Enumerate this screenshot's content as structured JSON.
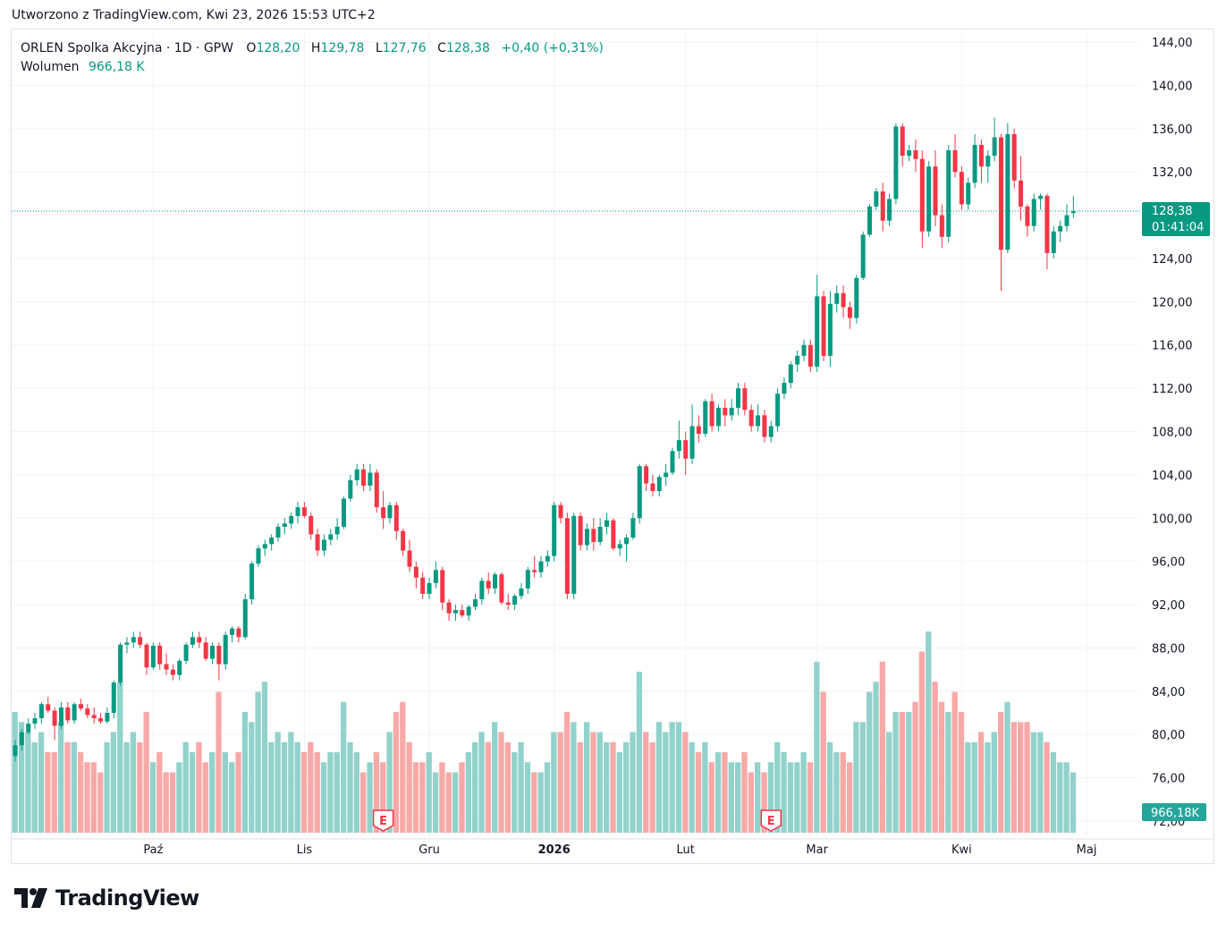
{
  "header": {
    "created_text": "Utworzono z TradingView.com, Kwi 23, 2026 15:53 UTC+2"
  },
  "legend": {
    "symbol": "ORLEN Spolka Akcyjna · 1D · GPW",
    "open_label": "O",
    "open_value": "128,20",
    "high_label": "H",
    "high_value": "129,78",
    "low_label": "L",
    "low_value": "127,76",
    "close_label": "C",
    "close_value": "128,38",
    "change": "+0,40 (+0,31%)",
    "volume_label": "Wolumen",
    "volume_value": "966,18 K"
  },
  "price_tag": {
    "price": "128,38",
    "countdown": "01:41:04"
  },
  "volume_tag": "966,18K",
  "earnings_marker": "E",
  "brand": {
    "name": "TradingView"
  },
  "colors": {
    "up": "#089981",
    "down": "#f23645",
    "vol_up": "#92d2cc",
    "vol_down": "#f7a9a7",
    "grid": "#f0f3fa",
    "accent": "#089981"
  },
  "chart_data": {
    "type": "candlestick",
    "title": "ORLEN Spolka Akcyjna · 1D · GPW",
    "y_ticks": [
      "72,00",
      "76,00",
      "80,00",
      "84,00",
      "88,00",
      "92,00",
      "96,00",
      "100,00",
      "104,00",
      "108,00",
      "112,00",
      "116,00",
      "120,00",
      "124,00",
      "128,00",
      "132,00",
      "136,00",
      "140,00",
      "144,00"
    ],
    "ylim": [
      71,
      145
    ],
    "x_ticks": [
      {
        "label": "Paź",
        "index": 21,
        "bold": false
      },
      {
        "label": "Lis",
        "index": 44,
        "bold": false
      },
      {
        "label": "Gru",
        "index": 63,
        "bold": false
      },
      {
        "label": "2026",
        "index": 82,
        "bold": true
      },
      {
        "label": "Lut",
        "index": 102,
        "bold": false
      },
      {
        "label": "Mar",
        "index": 122,
        "bold": false
      },
      {
        "label": "Kwi",
        "index": 144,
        "bold": false
      },
      {
        "label": "Maj",
        "index": 163,
        "bold": false
      }
    ],
    "earnings_indices": [
      56,
      115
    ],
    "last_price": 128.38,
    "candles": [
      [
        78.0,
        79.5,
        77.5,
        79.0,
        0.6
      ],
      [
        79.0,
        80.5,
        78.5,
        80.2,
        0.55
      ],
      [
        80.2,
        81.5,
        80.0,
        81.0,
        0.5
      ],
      [
        81.0,
        82.0,
        80.5,
        81.5,
        0.45
      ],
      [
        81.5,
        83.0,
        81.0,
        82.8,
        0.5
      ],
      [
        82.8,
        83.5,
        82.0,
        82.2,
        0.4
      ],
      [
        82.2,
        82.5,
        79.5,
        80.8,
        0.4
      ],
      [
        80.8,
        83.0,
        80.5,
        82.5,
        0.55
      ],
      [
        82.5,
        83.0,
        81.0,
        81.3,
        0.45
      ],
      [
        81.3,
        83.0,
        81.0,
        82.8,
        0.45
      ],
      [
        82.8,
        83.3,
        82.2,
        82.4,
        0.4
      ],
      [
        82.4,
        82.8,
        81.5,
        81.8,
        0.35
      ],
      [
        81.8,
        82.5,
        81.0,
        81.5,
        0.35
      ],
      [
        81.5,
        82.0,
        81.0,
        81.2,
        0.3
      ],
      [
        81.2,
        82.5,
        81.0,
        82.0,
        0.45
      ],
      [
        82.0,
        85.0,
        81.5,
        84.8,
        0.5
      ],
      [
        84.8,
        88.5,
        84.5,
        88.3,
        0.75
      ],
      [
        88.3,
        89.0,
        87.5,
        88.5,
        0.45
      ],
      [
        88.5,
        89.5,
        88.0,
        89.0,
        0.5
      ],
      [
        89.0,
        89.5,
        88.0,
        88.3,
        0.45
      ],
      [
        88.3,
        88.5,
        85.5,
        86.2,
        0.6
      ],
      [
        86.2,
        88.5,
        86.0,
        88.2,
        0.35
      ],
      [
        88.2,
        88.5,
        86.0,
        86.5,
        0.4
      ],
      [
        86.5,
        87.5,
        85.5,
        86.0,
        0.3
      ],
      [
        86.0,
        86.5,
        85.0,
        85.5,
        0.3
      ],
      [
        85.5,
        87.0,
        85.0,
        86.8,
        0.35
      ],
      [
        86.8,
        88.5,
        86.5,
        88.3,
        0.45
      ],
      [
        88.3,
        89.5,
        88.0,
        89.0,
        0.4
      ],
      [
        89.0,
        89.5,
        88.0,
        88.5,
        0.45
      ],
      [
        88.5,
        89.0,
        86.8,
        87.0,
        0.35
      ],
      [
        87.0,
        88.5,
        86.5,
        88.2,
        0.4
      ],
      [
        88.2,
        88.5,
        85.0,
        86.5,
        0.7
      ],
      [
        86.5,
        89.5,
        86.0,
        89.2,
        0.4
      ],
      [
        89.2,
        90.0,
        88.5,
        89.8,
        0.35
      ],
      [
        89.8,
        90.0,
        88.5,
        89.0,
        0.4
      ],
      [
        89.0,
        93.0,
        88.8,
        92.5,
        0.6
      ],
      [
        92.5,
        96.0,
        92.0,
        95.8,
        0.55
      ],
      [
        95.8,
        97.5,
        95.5,
        97.2,
        0.7
      ],
      [
        97.2,
        98.0,
        96.5,
        97.6,
        0.75
      ],
      [
        97.6,
        98.5,
        97.0,
        98.2,
        0.45
      ],
      [
        98.2,
        99.5,
        97.8,
        99.2,
        0.5
      ],
      [
        99.2,
        100.0,
        98.5,
        99.5,
        0.45
      ],
      [
        99.5,
        100.5,
        99.0,
        100.2,
        0.5
      ],
      [
        100.2,
        101.5,
        99.5,
        101.0,
        0.45
      ],
      [
        101.0,
        101.5,
        100.0,
        100.2,
        0.4
      ],
      [
        100.2,
        100.5,
        98.0,
        98.5,
        0.45
      ],
      [
        98.5,
        99.0,
        96.5,
        97.0,
        0.4
      ],
      [
        97.0,
        98.5,
        96.5,
        98.0,
        0.35
      ],
      [
        98.0,
        99.0,
        97.5,
        98.5,
        0.4
      ],
      [
        98.5,
        100.0,
        98.0,
        99.2,
        0.4
      ],
      [
        99.2,
        102.0,
        99.0,
        101.8,
        0.65
      ],
      [
        101.8,
        104.0,
        101.5,
        103.5,
        0.45
      ],
      [
        103.5,
        105.0,
        103.0,
        104.5,
        0.4
      ],
      [
        104.5,
        105.0,
        102.5,
        103.0,
        0.3
      ],
      [
        103.0,
        105.0,
        102.5,
        104.2,
        0.35
      ],
      [
        104.2,
        104.5,
        100.5,
        101.0,
        0.4
      ],
      [
        101.0,
        102.5,
        99.0,
        100.0,
        0.35
      ],
      [
        100.0,
        101.5,
        99.5,
        101.2,
        0.5
      ],
      [
        101.2,
        101.5,
        98.0,
        98.8,
        0.6
      ],
      [
        98.8,
        99.0,
        96.5,
        97.0,
        0.65
      ],
      [
        97.0,
        98.0,
        95.0,
        95.5,
        0.45
      ],
      [
        95.5,
        96.0,
        93.5,
        94.5,
        0.35
      ],
      [
        94.5,
        95.0,
        92.5,
        93.0,
        0.35
      ],
      [
        93.0,
        94.5,
        92.5,
        94.0,
        0.4
      ],
      [
        94.0,
        96.0,
        93.5,
        95.2,
        0.3
      ],
      [
        95.2,
        95.5,
        91.5,
        92.2,
        0.35
      ],
      [
        92.2,
        92.5,
        90.5,
        91.2,
        0.3
      ],
      [
        91.2,
        92.0,
        90.5,
        91.5,
        0.3
      ],
      [
        91.5,
        92.0,
        90.8,
        91.0,
        0.35
      ],
      [
        91.0,
        92.0,
        90.5,
        91.8,
        0.4
      ],
      [
        91.8,
        93.0,
        91.5,
        92.5,
        0.45
      ],
      [
        92.5,
        94.5,
        92.0,
        94.2,
        0.5
      ],
      [
        94.2,
        95.0,
        93.0,
        93.5,
        0.45
      ],
      [
        93.5,
        95.0,
        93.0,
        94.8,
        0.55
      ],
      [
        94.8,
        95.0,
        92.0,
        92.2,
        0.5
      ],
      [
        92.2,
        93.0,
        91.5,
        92.0,
        0.45
      ],
      [
        92.0,
        93.0,
        91.5,
        92.8,
        0.4
      ],
      [
        92.8,
        94.0,
        92.5,
        93.5,
        0.45
      ],
      [
        93.5,
        95.5,
        93.0,
        95.2,
        0.35
      ],
      [
        95.2,
        96.5,
        94.5,
        95.0,
        0.3
      ],
      [
        95.0,
        96.5,
        94.5,
        96.0,
        0.3
      ],
      [
        96.0,
        97.0,
        95.5,
        96.5,
        0.35
      ],
      [
        96.5,
        101.5,
        96.0,
        101.2,
        0.5
      ],
      [
        101.2,
        101.5,
        99.5,
        100.0,
        0.5
      ],
      [
        100.0,
        100.5,
        92.5,
        93.0,
        0.6
      ],
      [
        93.0,
        100.5,
        92.5,
        100.2,
        0.55
      ],
      [
        100.2,
        100.5,
        97.0,
        97.5,
        0.45
      ],
      [
        97.5,
        99.5,
        97.0,
        99.0,
        0.55
      ],
      [
        99.0,
        100.0,
        97.0,
        97.8,
        0.5
      ],
      [
        97.8,
        100.0,
        97.5,
        99.2,
        0.5
      ],
      [
        99.2,
        100.5,
        98.5,
        99.8,
        0.45
      ],
      [
        99.8,
        100.0,
        97.0,
        97.2,
        0.45
      ],
      [
        97.2,
        98.0,
        96.5,
        97.6,
        0.4
      ],
      [
        97.6,
        98.5,
        96.0,
        98.2,
        0.45
      ],
      [
        98.2,
        100.5,
        98.0,
        100.0,
        0.5
      ],
      [
        100.0,
        105.0,
        99.5,
        104.8,
        0.8
      ],
      [
        104.8,
        105.0,
        102.5,
        103.2,
        0.5
      ],
      [
        103.2,
        104.0,
        102.0,
        102.5,
        0.45
      ],
      [
        102.5,
        104.0,
        102.0,
        103.8,
        0.55
      ],
      [
        103.8,
        105.0,
        103.0,
        104.2,
        0.5
      ],
      [
        104.2,
        106.5,
        104.0,
        106.2,
        0.55
      ],
      [
        106.2,
        109.0,
        105.5,
        107.2,
        0.55
      ],
      [
        107.2,
        108.0,
        104.0,
        105.5,
        0.5
      ],
      [
        105.5,
        110.5,
        105.0,
        108.5,
        0.45
      ],
      [
        108.5,
        109.5,
        107.0,
        107.8,
        0.4
      ],
      [
        107.8,
        111.0,
        107.5,
        110.8,
        0.45
      ],
      [
        110.8,
        111.5,
        108.0,
        108.5,
        0.35
      ],
      [
        108.5,
        110.5,
        108.0,
        110.2,
        0.4
      ],
      [
        110.2,
        111.0,
        108.5,
        109.5,
        0.4
      ],
      [
        109.5,
        111.0,
        109.0,
        110.2,
        0.35
      ],
      [
        110.2,
        112.5,
        109.5,
        112.0,
        0.35
      ],
      [
        112.0,
        112.5,
        109.5,
        110.0,
        0.4
      ],
      [
        110.0,
        110.5,
        108.0,
        108.5,
        0.3
      ],
      [
        108.5,
        110.5,
        108.0,
        109.5,
        0.35
      ],
      [
        109.5,
        110.0,
        107.0,
        107.5,
        0.3
      ],
      [
        107.5,
        109.0,
        107.0,
        108.5,
        0.35
      ],
      [
        108.5,
        112.0,
        108.0,
        111.5,
        0.45
      ],
      [
        111.5,
        113.0,
        111.0,
        112.5,
        0.4
      ],
      [
        112.5,
        114.5,
        112.0,
        114.2,
        0.35
      ],
      [
        114.2,
        115.5,
        113.5,
        115.0,
        0.35
      ],
      [
        115.0,
        116.5,
        114.5,
        116.0,
        0.4
      ],
      [
        116.0,
        116.5,
        113.5,
        114.0,
        0.35
      ],
      [
        114.0,
        122.5,
        113.5,
        120.5,
        0.85
      ],
      [
        120.5,
        121.0,
        114.5,
        115.0,
        0.7
      ],
      [
        115.0,
        121.0,
        114.0,
        119.8,
        0.45
      ],
      [
        119.8,
        121.5,
        119.0,
        120.8,
        0.4
      ],
      [
        120.8,
        121.5,
        118.5,
        119.5,
        0.4
      ],
      [
        119.5,
        120.0,
        117.5,
        118.5,
        0.35
      ],
      [
        118.5,
        122.5,
        118.0,
        122.2,
        0.55
      ],
      [
        122.2,
        126.5,
        122.0,
        126.2,
        0.55
      ],
      [
        126.2,
        129.0,
        126.0,
        128.8,
        0.7
      ],
      [
        128.8,
        130.5,
        128.5,
        130.2,
        0.75
      ],
      [
        130.2,
        131.0,
        126.5,
        127.5,
        0.85
      ],
      [
        127.5,
        130.0,
        127.0,
        129.5,
        0.5
      ],
      [
        129.5,
        136.5,
        129.0,
        136.2,
        0.6
      ],
      [
        136.2,
        136.5,
        132.5,
        133.5,
        0.6
      ],
      [
        133.5,
        134.5,
        133.0,
        134.0,
        0.6
      ],
      [
        134.0,
        135.0,
        132.0,
        133.2,
        0.65
      ],
      [
        133.2,
        134.0,
        125.0,
        126.5,
        0.9
      ],
      [
        126.5,
        133.0,
        126.0,
        132.5,
        1.0
      ],
      [
        132.5,
        134.0,
        127.0,
        128.0,
        0.75
      ],
      [
        128.0,
        129.0,
        125.0,
        126.0,
        0.65
      ],
      [
        126.0,
        134.5,
        125.5,
        134.0,
        0.6
      ],
      [
        134.0,
        135.5,
        131.5,
        132.0,
        0.7
      ],
      [
        132.0,
        132.5,
        128.5,
        129.0,
        0.6
      ],
      [
        129.0,
        131.5,
        128.5,
        131.0,
        0.45
      ],
      [
        131.0,
        135.5,
        130.5,
        134.5,
        0.45
      ],
      [
        134.5,
        135.0,
        131.0,
        132.5,
        0.5
      ],
      [
        132.5,
        134.0,
        131.0,
        133.5,
        0.45
      ],
      [
        133.5,
        137.0,
        133.0,
        135.2,
        0.5
      ],
      [
        135.2,
        135.5,
        121.0,
        124.8,
        0.6
      ],
      [
        124.8,
        136.5,
        124.5,
        135.5,
        0.65
      ],
      [
        135.5,
        136.0,
        130.5,
        131.2,
        0.55
      ],
      [
        131.2,
        133.5,
        127.5,
        128.8,
        0.55
      ],
      [
        128.8,
        129.0,
        126.0,
        127.0,
        0.55
      ],
      [
        127.0,
        130.0,
        126.5,
        129.5,
        0.5
      ],
      [
        129.5,
        130.0,
        128.5,
        129.8,
        0.5
      ],
      [
        129.8,
        130.0,
        123.0,
        124.5,
        0.45
      ],
      [
        124.5,
        127.0,
        124.0,
        126.5,
        0.4
      ],
      [
        126.5,
        127.5,
        125.5,
        127.0,
        0.35
      ],
      [
        127.0,
        129.0,
        126.5,
        128.0,
        0.35
      ],
      [
        128.2,
        129.78,
        127.76,
        128.38,
        0.3
      ]
    ]
  }
}
